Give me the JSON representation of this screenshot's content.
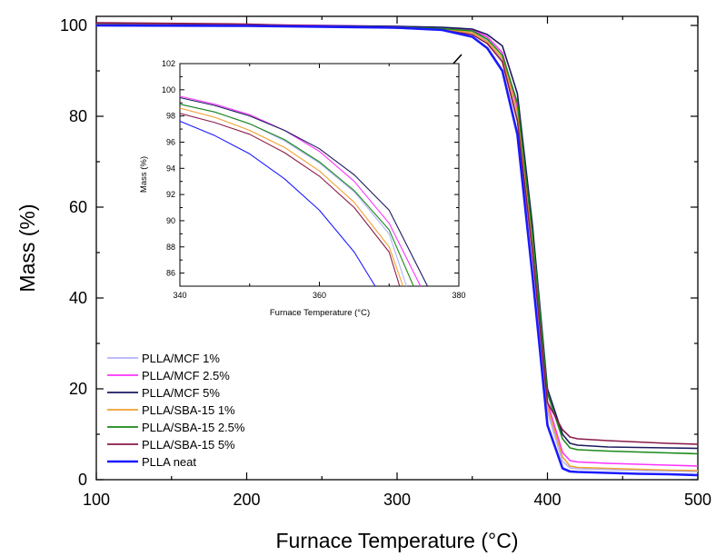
{
  "chart_data": [
    {
      "type": "line",
      "xlabel": "Furnace Temperature (°C)",
      "ylabel": "Mass (%)",
      "xlim": [
        100,
        500
      ],
      "ylim": [
        0,
        102
      ],
      "xticks": [
        100,
        200,
        300,
        400,
        500
      ],
      "yticks": [
        0,
        20,
        40,
        60,
        80,
        100
      ],
      "legend_position": "bottom-left",
      "series": [
        {
          "name": "PLLA/MCF 1%",
          "color": "#b3b3ff",
          "x": [
            100,
            200,
            300,
            330,
            350,
            360,
            370,
            380,
            390,
            400,
            410,
            415,
            420,
            440,
            460,
            480,
            500
          ],
          "y": [
            100.4,
            100.1,
            99.7,
            99.3,
            98.6,
            96.6,
            92.5,
            80,
            50,
            15,
            4,
            2.6,
            2.4,
            2.2,
            2.0,
            1.9,
            1.8
          ]
        },
        {
          "name": "PLLA/MCF 2.5%",
          "color": "#ff33ff",
          "x": [
            100,
            200,
            300,
            330,
            350,
            360,
            370,
            380,
            390,
            400,
            410,
            415,
            420,
            440,
            460,
            480,
            500
          ],
          "y": [
            100.5,
            100.2,
            99.8,
            99.5,
            99.0,
            97.5,
            94.0,
            82,
            52,
            17,
            6,
            4.2,
            3.9,
            3.6,
            3.4,
            3.2,
            3.0
          ]
        },
        {
          "name": "PLLA/MCF 5%",
          "color": "#1a1a5e",
          "x": [
            100,
            200,
            300,
            330,
            350,
            360,
            370,
            380,
            390,
            400,
            410,
            415,
            420,
            440,
            460,
            480,
            500
          ],
          "y": [
            100.3,
            100.1,
            99.8,
            99.6,
            99.2,
            98.0,
            95.5,
            85,
            56,
            20,
            10,
            8.0,
            7.6,
            7.2,
            7.1,
            7.0,
            6.9
          ]
        },
        {
          "name": "PLLA/SBA-15 1%",
          "color": "#f0a030",
          "x": [
            100,
            200,
            300,
            330,
            350,
            360,
            370,
            380,
            390,
            400,
            410,
            415,
            420,
            440,
            460,
            480,
            500
          ],
          "y": [
            100.2,
            100.0,
            99.6,
            99.2,
            98.4,
            96.4,
            92.8,
            81,
            51,
            16,
            5,
            3.0,
            2.7,
            2.5,
            2.3,
            2.1,
            2.0
          ]
        },
        {
          "name": "PLLA/SBA-15 2.5%",
          "color": "#1a8a1a",
          "x": [
            100,
            200,
            300,
            330,
            350,
            360,
            370,
            380,
            390,
            400,
            410,
            415,
            420,
            440,
            460,
            480,
            500
          ],
          "y": [
            100.1,
            99.9,
            99.6,
            99.3,
            98.8,
            97.0,
            93.4,
            83,
            54,
            19,
            9,
            7.0,
            6.6,
            6.3,
            6.1,
            5.9,
            5.7
          ]
        },
        {
          "name": "PLLA/SBA-15 5%",
          "color": "#8a1a4a",
          "x": [
            100,
            200,
            300,
            330,
            350,
            360,
            370,
            380,
            390,
            400,
            410,
            415,
            420,
            440,
            460,
            480,
            500
          ],
          "y": [
            100.6,
            100.3,
            99.4,
            99.0,
            98.0,
            96.0,
            92.0,
            79,
            50,
            17,
            11,
            9.4,
            9.0,
            8.6,
            8.3,
            8.0,
            7.8
          ]
        },
        {
          "name": "PLLA neat",
          "color": "#1a1aff",
          "x": [
            100,
            200,
            300,
            330,
            350,
            360,
            370,
            380,
            390,
            400,
            410,
            415,
            420,
            440,
            460,
            480,
            500
          ],
          "y": [
            100.0,
            99.9,
            99.5,
            99.0,
            97.5,
            95.0,
            90.0,
            76,
            45,
            12,
            2.5,
            1.8,
            1.7,
            1.5,
            1.3,
            1.2,
            1.0
          ]
        }
      ]
    },
    {
      "type": "line",
      "xlabel": "Furnace Temperature (°C)",
      "ylabel": "Mass (%)",
      "xlim": [
        340,
        380
      ],
      "ylim": [
        85,
        102
      ],
      "xticks": [
        340,
        360,
        380
      ],
      "yticks": [
        86,
        88,
        90,
        92,
        94,
        96,
        98,
        100,
        102
      ],
      "series": [
        {
          "name": "PLLA/MCF 1%",
          "color": "#b3b3ff",
          "x": [
            340,
            345,
            350,
            355,
            360,
            365,
            370,
            372.5
          ],
          "y": [
            98.9,
            98.3,
            97.4,
            96.1,
            94.4,
            92.2,
            89.0,
            85
          ]
        },
        {
          "name": "PLLA/MCF 2.5%",
          "color": "#ff33ff",
          "x": [
            340,
            345,
            350,
            355,
            360,
            365,
            370,
            374.5
          ],
          "y": [
            99.5,
            98.9,
            98.1,
            96.9,
            95.3,
            93.0,
            89.8,
            85
          ]
        },
        {
          "name": "PLLA/MCF 5%",
          "color": "#1a1a5e",
          "x": [
            340,
            345,
            350,
            355,
            360,
            365,
            370,
            375.5
          ],
          "y": [
            99.4,
            98.8,
            98.0,
            96.9,
            95.5,
            93.5,
            90.8,
            85
          ]
        },
        {
          "name": "PLLA/SBA-15 1%",
          "color": "#f0a030",
          "x": [
            340,
            345,
            350,
            355,
            360,
            365,
            370,
            372
          ],
          "y": [
            98.6,
            97.9,
            96.9,
            95.6,
            93.8,
            91.4,
            88.0,
            85
          ]
        },
        {
          "name": "PLLA/SBA-15 2.5%",
          "color": "#1a8a1a",
          "x": [
            340,
            345,
            350,
            355,
            360,
            365,
            370,
            373.5
          ],
          "y": [
            98.9,
            98.3,
            97.4,
            96.2,
            94.5,
            92.3,
            89.3,
            85
          ]
        },
        {
          "name": "PLLA/SBA-15 5%",
          "color": "#8a1a4a",
          "x": [
            340,
            345,
            350,
            355,
            360,
            365,
            370,
            371.5
          ],
          "y": [
            98.2,
            97.5,
            96.6,
            95.2,
            93.4,
            91.0,
            87.6,
            85
          ]
        },
        {
          "name": "PLLA neat",
          "color": "#1a1aff",
          "x": [
            340,
            345,
            350,
            355,
            360,
            365,
            368
          ],
          "y": [
            97.6,
            96.5,
            95.1,
            93.2,
            90.8,
            87.6,
            85
          ]
        }
      ]
    }
  ]
}
